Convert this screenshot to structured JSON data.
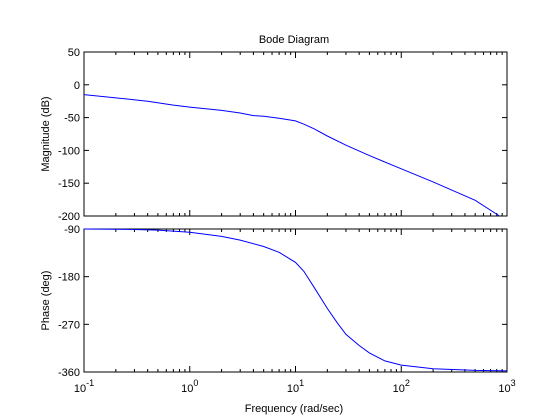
{
  "chart_data": {
    "type": "line",
    "title": "Bode Diagram",
    "xlabel": "Frequency  (rad/sec)",
    "x_scale": "log",
    "xlim": [
      0.1,
      1000
    ],
    "x_ticks": [
      0.1,
      1,
      10,
      100,
      1000
    ],
    "x_tick_labels": [
      {
        "base": "10",
        "exp": "-1"
      },
      {
        "base": "10",
        "exp": "0"
      },
      {
        "base": "10",
        "exp": "1"
      },
      {
        "base": "10",
        "exp": "2"
      },
      {
        "base": "10",
        "exp": "3"
      }
    ],
    "panels": [
      {
        "ylabel": "Magnitude (dB)",
        "ylim": [
          -200,
          50
        ],
        "y_ticks": [
          -200,
          -150,
          -100,
          -50,
          0,
          50
        ],
        "y_tick_labels": [
          "-200",
          "-150",
          "-100",
          "-50",
          "0",
          "50"
        ],
        "series": [
          {
            "color": "#0000ff",
            "x": [
              0.1,
              0.2,
              0.4,
              0.7,
              1,
              2,
              3,
              4,
              5,
              7,
              10,
              12,
              15,
              20,
              30,
              50,
              100,
              200,
              500,
              850
            ],
            "y": [
              -15,
              -20,
              -25,
              -31,
              -34,
              -39,
              -43,
              -47,
              -48,
              -51,
              -55,
              -60,
              -67,
              -78,
              -92,
              -108,
              -128,
              -148,
              -176,
              -200
            ]
          }
        ]
      },
      {
        "ylabel": "Phase (deg)",
        "ylim": [
          -360,
          -90
        ],
        "y_ticks": [
          -360,
          -270,
          -180,
          -90
        ],
        "y_tick_labels": [
          "-360",
          "-270",
          "-180",
          "-90"
        ],
        "series": [
          {
            "color": "#0000ff",
            "x": [
              0.1,
              0.3,
              0.5,
              1,
              2,
              3,
              5,
              7,
              10,
              12,
              15,
              20,
              25,
              30,
              40,
              50,
              70,
              100,
              200,
              500,
              1000
            ],
            "y": [
              -90,
              -91,
              -92,
              -96,
              -104,
              -111,
              -123,
              -134,
              -153,
              -170,
              -200,
              -240,
              -268,
              -289,
              -310,
              -324,
              -339,
              -347,
              -354,
              -357,
              -358
            ]
          }
        ]
      }
    ]
  }
}
